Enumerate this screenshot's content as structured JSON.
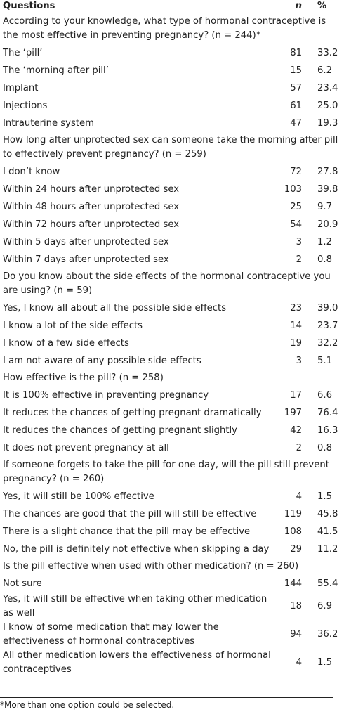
{
  "header": {
    "question": "Questions",
    "n": "n",
    "pct": "%"
  },
  "sections": [
    {
      "question": "According to your knowledge, what type of hormonal contraceptive is the most effective in preventing pregnancy? (n = 244)*",
      "rows": [
        [
          "The ‘pill’",
          81,
          "33.2"
        ],
        [
          "The ‘morning after pill’",
          15,
          "6.2"
        ],
        [
          "Implant",
          57,
          "23.4"
        ],
        [
          "Injections",
          61,
          "25.0"
        ],
        [
          "Intrauterine system",
          47,
          "19.3"
        ]
      ]
    },
    {
      "question": "How long after unprotected sex can someone take the morning after pill to effectively prevent pregnancy? (n = 259)",
      "rows": [
        [
          "I don’t know",
          72,
          "27.8"
        ],
        [
          "Within 24 hours after unprotected sex",
          103,
          "39.8"
        ],
        [
          "Within 48 hours after unprotected sex",
          25,
          "9.7"
        ],
        [
          "Within 72 hours after unprotected sex",
          54,
          "20.9"
        ],
        [
          "Within 5 days after unprotected sex",
          3,
          "1.2"
        ],
        [
          "Within 7 days after unprotected sex",
          2,
          "0.8"
        ]
      ]
    },
    {
      "question": "Do you know about the side effects of the hormonal contraceptive you are using? (n = 59)",
      "rows": [
        [
          "Yes, I know all about all the possible side effects",
          23,
          "39.0"
        ],
        [
          "I know a lot of the side effects",
          14,
          "23.7"
        ],
        [
          "I know of a few side effects",
          19,
          "32.2"
        ],
        [
          "I am not aware of any possible side effects",
          3,
          "5.1"
        ]
      ]
    },
    {
      "question": "How effective is the pill? (n = 258)",
      "rows": [
        [
          "It is 100% effective in preventing pregnancy",
          17,
          "6.6"
        ],
        [
          "It reduces the chances of getting pregnant dramatically",
          197,
          "76.4"
        ],
        [
          "It reduces the chances of getting pregnant slightly",
          42,
          "16.3"
        ],
        [
          "It does not prevent pregnancy at all",
          2,
          "0.8"
        ]
      ]
    },
    {
      "question": "If someone forgets to take the pill for one day, will the pill still prevent pregnancy? (n = 260)",
      "rows": [
        [
          "Yes, it will still be 100% effective",
          4,
          "1.5"
        ],
        [
          "The chances are good that the pill will still be effective",
          119,
          "45.8"
        ],
        [
          "There is a slight chance that the pill may be effective",
          108,
          "41.5"
        ],
        [
          "No, the pill is definitely not effective when skipping a day",
          29,
          "11.2"
        ]
      ]
    },
    {
      "question": "Is the pill effective when used with other medication? (n = 260)",
      "rows": [
        [
          "Not sure",
          144,
          "55.4"
        ],
        [
          "Yes, it will still be effective when taking other medication as well",
          18,
          "6.9"
        ],
        [
          "I know of some medication that may lower the effectiveness of hormonal contraceptives",
          94,
          "36.2"
        ],
        [
          "All other medication lowers the effectiveness of hormonal contraceptives",
          4,
          "1.5"
        ]
      ]
    }
  ],
  "footnote": "*More than one option could be selected."
}
